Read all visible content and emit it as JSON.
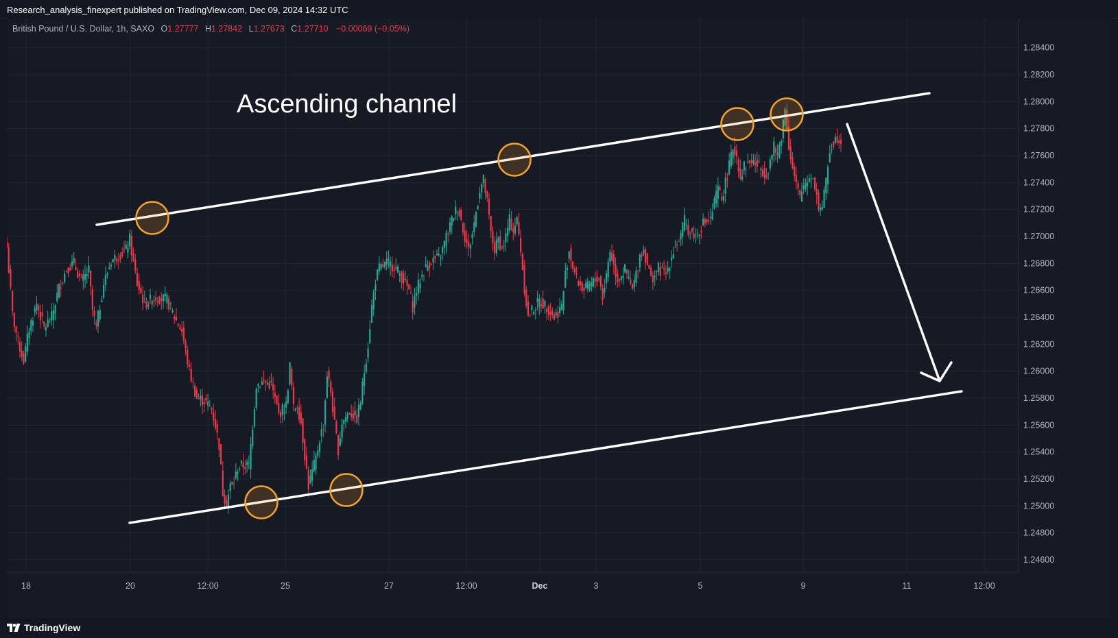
{
  "header": {
    "published": "Research_analysis_finexpert published on TradingView.com, Dec 09, 2024 14:32 UTC"
  },
  "legend": {
    "symbol": "British Pound / U.S. Dollar, 1h, SAXO",
    "o_label": "O",
    "o_value": "1.27777",
    "h_label": "H",
    "h_value": "1.27842",
    "l_label": "L",
    "l_value": "1.27673",
    "c_label": "C",
    "c_value": "1.27710",
    "change": "−0.00069 (−0.05%)"
  },
  "footer": {
    "brand": "TradingView",
    "logo_icon": "tradingview-logo-icon"
  },
  "colors": {
    "background": "#161a25",
    "grid": "#232733",
    "up": "#22ab94",
    "down": "#f23645",
    "annotation": "#ffffff",
    "circle": "#f7a325"
  },
  "annotations": {
    "title": "Ascending channel"
  },
  "chart_data": {
    "type": "candlestick",
    "symbol": "GBPUSD",
    "timeframe": "1h",
    "x_ticks": [
      "18",
      "20",
      "12:00",
      "25",
      "27",
      "12:00",
      "Dec",
      "3",
      "5",
      "9",
      "11",
      "12:00"
    ],
    "y_ticks": [
      "1.28400",
      "1.28200",
      "1.28000",
      "1.27800",
      "1.27600",
      "1.27400",
      "1.27200",
      "1.27000",
      "1.26800",
      "1.26600",
      "1.26400",
      "1.26200",
      "1.26000",
      "1.25800",
      "1.25600",
      "1.25400",
      "1.25200",
      "1.25000",
      "1.24800",
      "1.24600"
    ],
    "ylim": [
      1.2452,
      1.2852
    ],
    "grid": true,
    "anchors_index_price": [
      [
        0,
        1.2692
      ],
      [
        3,
        1.2642
      ],
      [
        6,
        1.2622
      ],
      [
        9,
        1.2608
      ],
      [
        12,
        1.2632
      ],
      [
        16,
        1.265
      ],
      [
        20,
        1.2632
      ],
      [
        24,
        1.264
      ],
      [
        28,
        1.2662
      ],
      [
        32,
        1.2676
      ],
      [
        36,
        1.268
      ],
      [
        40,
        1.2666
      ],
      [
        44,
        1.2675
      ],
      [
        46,
        1.2645
      ],
      [
        48,
        1.2632
      ],
      [
        52,
        1.2665
      ],
      [
        56,
        1.2682
      ],
      [
        60,
        1.2686
      ],
      [
        64,
        1.269
      ],
      [
        66,
        1.2698
      ],
      [
        68,
        1.268
      ],
      [
        70,
        1.2665
      ],
      [
        74,
        1.265
      ],
      [
        80,
        1.2655
      ],
      [
        86,
        1.2653
      ],
      [
        90,
        1.264
      ],
      [
        94,
        1.263
      ],
      [
        98,
        1.26
      ],
      [
        102,
        1.258
      ],
      [
        106,
        1.2578
      ],
      [
        110,
        1.2572
      ],
      [
        112,
        1.256
      ],
      [
        114,
        1.2545
      ],
      [
        116,
        1.251
      ],
      [
        118,
        1.2502
      ],
      [
        120,
        1.2515
      ],
      [
        122,
        1.2518
      ],
      [
        124,
        1.2528
      ],
      [
        126,
        1.253
      ],
      [
        130,
        1.253
      ],
      [
        134,
        1.259
      ],
      [
        138,
        1.2592
      ],
      [
        142,
        1.259
      ],
      [
        146,
        1.2568
      ],
      [
        150,
        1.2575
      ],
      [
        152,
        1.2604
      ],
      [
        154,
        1.2572
      ],
      [
        156,
        1.2575
      ],
      [
        158,
        1.2562
      ],
      [
        160,
        1.2538
      ],
      [
        162,
        1.2515
      ],
      [
        164,
        1.2525
      ],
      [
        166,
        1.2535
      ],
      [
        168,
        1.255
      ],
      [
        170,
        1.256
      ],
      [
        172,
        1.2598
      ],
      [
        174,
        1.2585
      ],
      [
        176,
        1.256
      ],
      [
        178,
        1.2542
      ],
      [
        180,
        1.2562
      ],
      [
        184,
        1.257
      ],
      [
        188,
        1.2565
      ],
      [
        190,
        1.2578
      ],
      [
        192,
        1.26
      ],
      [
        194,
        1.262
      ],
      [
        196,
        1.2648
      ],
      [
        198,
        1.2668
      ],
      [
        200,
        1.2676
      ],
      [
        204,
        1.268
      ],
      [
        208,
        1.2678
      ],
      [
        212,
        1.267
      ],
      [
        216,
        1.266
      ],
      [
        218,
        1.2648
      ],
      [
        220,
        1.266
      ],
      [
        224,
        1.2675
      ],
      [
        228,
        1.2682
      ],
      [
        232,
        1.2684
      ],
      [
        234,
        1.269
      ],
      [
        236,
        1.27
      ],
      [
        238,
        1.2708
      ],
      [
        240,
        1.2716
      ],
      [
        242,
        1.2722
      ],
      [
        244,
        1.2712
      ],
      [
        246,
        1.27
      ],
      [
        248,
        1.269
      ],
      [
        250,
        1.2702
      ],
      [
        252,
        1.2718
      ],
      [
        254,
        1.2735
      ],
      [
        256,
        1.2742
      ],
      [
        258,
        1.2725
      ],
      [
        260,
        1.2702
      ],
      [
        262,
        1.269
      ],
      [
        264,
        1.2698
      ],
      [
        266,
        1.269
      ],
      [
        268,
        1.27
      ],
      [
        270,
        1.2712
      ],
      [
        272,
        1.2705
      ],
      [
        274,
        1.2712
      ],
      [
        276,
        1.269
      ],
      [
        278,
        1.2662
      ],
      [
        280,
        1.264
      ],
      [
        282,
        1.2645
      ],
      [
        286,
        1.2652
      ],
      [
        290,
        1.2648
      ],
      [
        294,
        1.264
      ],
      [
        298,
        1.2648
      ],
      [
        300,
        1.2672
      ],
      [
        302,
        1.269
      ],
      [
        304,
        1.2678
      ],
      [
        306,
        1.2668
      ],
      [
        310,
        1.266
      ],
      [
        314,
        1.2665
      ],
      [
        318,
        1.267
      ],
      [
        320,
        1.2655
      ],
      [
        322,
        1.2672
      ],
      [
        324,
        1.269
      ],
      [
        326,
        1.2678
      ],
      [
        328,
        1.2668
      ],
      [
        332,
        1.2675
      ],
      [
        336,
        1.266
      ],
      [
        338,
        1.2672
      ],
      [
        340,
        1.2686
      ],
      [
        342,
        1.269
      ],
      [
        344,
        1.268
      ],
      [
        346,
        1.2668
      ],
      [
        350,
        1.2676
      ],
      [
        354,
        1.2672
      ],
      [
        358,
        1.269
      ],
      [
        362,
        1.27
      ],
      [
        364,
        1.2712
      ],
      [
        366,
        1.2705
      ],
      [
        370,
        1.27
      ],
      [
        374,
        1.271
      ],
      [
        378,
        1.2712
      ],
      [
        380,
        1.2725
      ],
      [
        382,
        1.2735
      ],
      [
        384,
        1.2728
      ],
      [
        386,
        1.274
      ],
      [
        388,
        1.2752
      ],
      [
        390,
        1.2766
      ],
      [
        392,
        1.276
      ],
      [
        394,
        1.2744
      ],
      [
        396,
        1.2752
      ],
      [
        400,
        1.2756
      ],
      [
        404,
        1.2752
      ],
      [
        408,
        1.2746
      ],
      [
        410,
        1.2756
      ],
      [
        412,
        1.2766
      ],
      [
        414,
        1.276
      ],
      [
        416,
        1.2775
      ],
      [
        418,
        1.2795
      ],
      [
        420,
        1.2768
      ],
      [
        422,
        1.275
      ],
      [
        424,
        1.2738
      ],
      [
        426,
        1.2728
      ],
      [
        428,
        1.2738
      ],
      [
        430,
        1.2742
      ],
      [
        432,
        1.2746
      ],
      [
        434,
        1.2738
      ],
      [
        436,
        1.2722
      ],
      [
        438,
        1.2722
      ],
      [
        440,
        1.274
      ],
      [
        442,
        1.2765
      ],
      [
        444,
        1.277
      ],
      [
        446,
        1.2774
      ],
      [
        448,
        1.2771
      ]
    ],
    "channel_upper": {
      "from": [
        "Nov 19",
        1.27
      ],
      "to": [
        "Dec 11",
        1.2793
      ]
    },
    "channel_lower": {
      "from": [
        "Nov 19",
        1.2487
      ],
      "to": [
        "Dec 11",
        1.258
      ]
    },
    "circled_touches": [
      [
        "Nov 20",
        1.2705,
        "upper"
      ],
      [
        "Nov 24",
        1.2502,
        "lower"
      ],
      [
        "Nov 26",
        1.2511,
        "lower"
      ],
      [
        "Nov 29",
        1.2747,
        "upper"
      ],
      [
        "Dec 6",
        1.2771,
        "upper"
      ],
      [
        "Dec 8",
        1.2778,
        "upper"
      ]
    ],
    "projection_arrow": {
      "from": [
        "Dec 9",
        1.2772
      ],
      "to": [
        "Dec 11",
        1.2587
      ]
    }
  }
}
